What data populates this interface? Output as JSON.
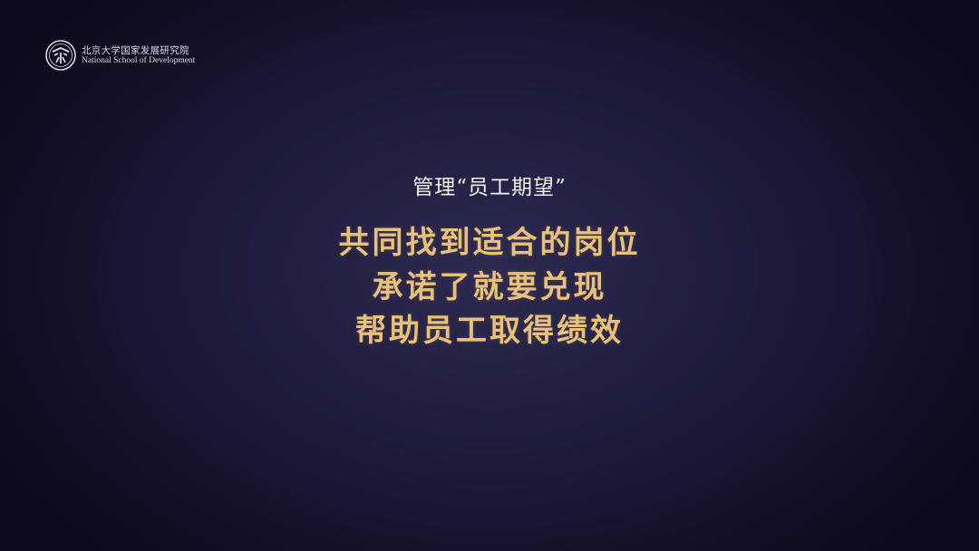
{
  "logo": {
    "name_cn": "北京大学国家发展研究院",
    "name_en": "National School of Development"
  },
  "slide": {
    "subtitle": "管理“员工期望”",
    "lines": [
      "共同找到适合的岗位",
      "承诺了就要兑现",
      "帮助员工取得绩效"
    ]
  },
  "colors": {
    "background": "#221f42",
    "gold": "#e9c079",
    "white": "#f4f1ea"
  }
}
